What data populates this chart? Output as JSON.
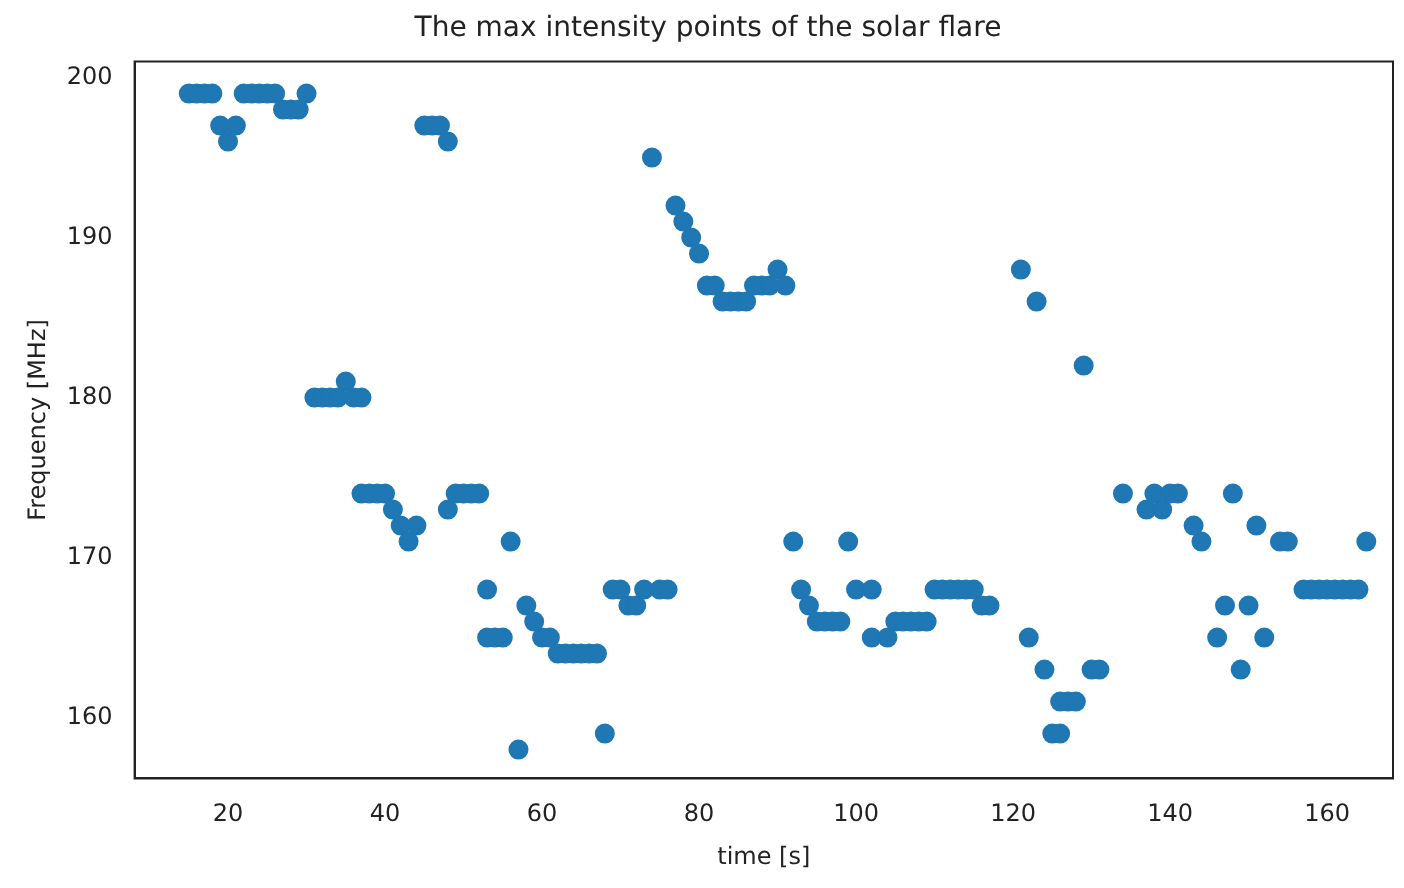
{
  "chart_data": {
    "type": "scatter",
    "title": "The max intensity points of the solar flare",
    "xlabel": "time [s]",
    "ylabel": "Frequency [MHz]",
    "color": "#1f77b4",
    "marker": "circle",
    "grid": false,
    "legend": false,
    "x": [
      15,
      16,
      17,
      18,
      19,
      20,
      21,
      22,
      23,
      24,
      25,
      26,
      27,
      28,
      29,
      30,
      31,
      32,
      33,
      34,
      35,
      36,
      37,
      37,
      38,
      39,
      40,
      41,
      42,
      43,
      44,
      45,
      46,
      47,
      48,
      48,
      49,
      50,
      51,
      52,
      53,
      53,
      54,
      55,
      56,
      57,
      58,
      59,
      60,
      61,
      62,
      63,
      64,
      65,
      66,
      67,
      68,
      69,
      70,
      71,
      72,
      73,
      74,
      75,
      76,
      77,
      78,
      79,
      80,
      81,
      82,
      83,
      84,
      85,
      86,
      87,
      88,
      89,
      90,
      91,
      92,
      93,
      94,
      95,
      96,
      97,
      98,
      99,
      100,
      102,
      102,
      104,
      105,
      106,
      107,
      108,
      109,
      110,
      111,
      112,
      113,
      114,
      115,
      116,
      117,
      121,
      122,
      123,
      124,
      125,
      126,
      126,
      127,
      128,
      129,
      130,
      131,
      134,
      137,
      138,
      139,
      140,
      141,
      143,
      144,
      146,
      147,
      148,
      149,
      150,
      151,
      152,
      154,
      155,
      157,
      158,
      159,
      160,
      161,
      162,
      163,
      164,
      165
    ],
    "values": [
      199,
      199,
      199,
      199,
      197,
      196,
      197,
      199,
      199,
      199,
      199,
      199,
      198,
      198,
      198,
      199,
      180,
      180,
      180,
      180,
      181,
      180,
      180,
      174,
      174,
      174,
      174,
      173,
      172,
      171,
      172,
      197,
      197,
      197,
      196,
      173,
      174,
      174,
      174,
      174,
      168,
      165,
      165,
      165,
      171,
      158,
      167,
      166,
      165,
      165,
      164,
      164,
      164,
      164,
      164,
      164,
      159,
      168,
      168,
      167,
      167,
      168,
      195,
      168,
      168,
      192,
      191,
      190,
      189,
      187,
      187,
      186,
      186,
      186,
      186,
      187,
      187,
      187,
      188,
      187,
      171,
      168,
      167,
      166,
      166,
      166,
      166,
      171,
      168,
      168,
      165,
      165,
      166,
      166,
      166,
      166,
      166,
      168,
      168,
      168,
      168,
      168,
      168,
      167,
      167,
      188,
      165,
      186,
      163,
      159,
      159,
      161,
      161,
      161,
      182,
      163,
      163,
      174,
      173,
      174,
      173,
      174,
      174,
      172,
      171,
      165,
      167,
      174,
      163,
      167,
      172,
      165,
      171,
      171,
      168,
      168,
      168,
      168,
      168,
      168,
      168,
      168,
      171
    ],
    "xlim": [
      8.1,
      168.4
    ],
    "xticks": [
      20,
      40,
      60,
      80,
      100,
      120,
      140,
      160
    ],
    "ylim": [
      156.2,
      201
    ],
    "yticks": [
      160,
      170,
      180,
      190,
      200
    ]
  }
}
